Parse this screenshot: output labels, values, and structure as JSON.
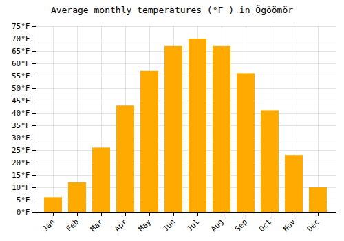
{
  "chart_data": {
    "type": "bar",
    "title": "Average monthly temperatures (°F ) in Ögöömör",
    "categories": [
      "Jan",
      "Feb",
      "Mar",
      "Apr",
      "May",
      "Jun",
      "Jul",
      "Aug",
      "Sep",
      "Oct",
      "Nov",
      "Dec"
    ],
    "values": [
      6,
      12,
      26,
      43,
      57,
      67,
      70,
      67,
      56,
      41,
      23,
      10
    ],
    "color": "#FFAA00",
    "ylim": [
      0,
      75
    ],
    "yticks": [
      {
        "value": 0,
        "label": "0°F"
      },
      {
        "value": 5,
        "label": "5°F"
      },
      {
        "value": 10,
        "label": "10°F"
      },
      {
        "value": 15,
        "label": "15°F"
      },
      {
        "value": 20,
        "label": "20°F"
      },
      {
        "value": 25,
        "label": "25°F"
      },
      {
        "value": 30,
        "label": "30°F"
      },
      {
        "value": 35,
        "label": "35°F"
      },
      {
        "value": 40,
        "label": "40°F"
      },
      {
        "value": 45,
        "label": "45°F"
      },
      {
        "value": 50,
        "label": "50°F"
      },
      {
        "value": 55,
        "label": "55°F"
      },
      {
        "value": 60,
        "label": "60°F"
      },
      {
        "value": 65,
        "label": "65°F"
      },
      {
        "value": 70,
        "label": "70°F"
      },
      {
        "value": 75,
        "label": "75°F"
      }
    ],
    "grid": true
  }
}
